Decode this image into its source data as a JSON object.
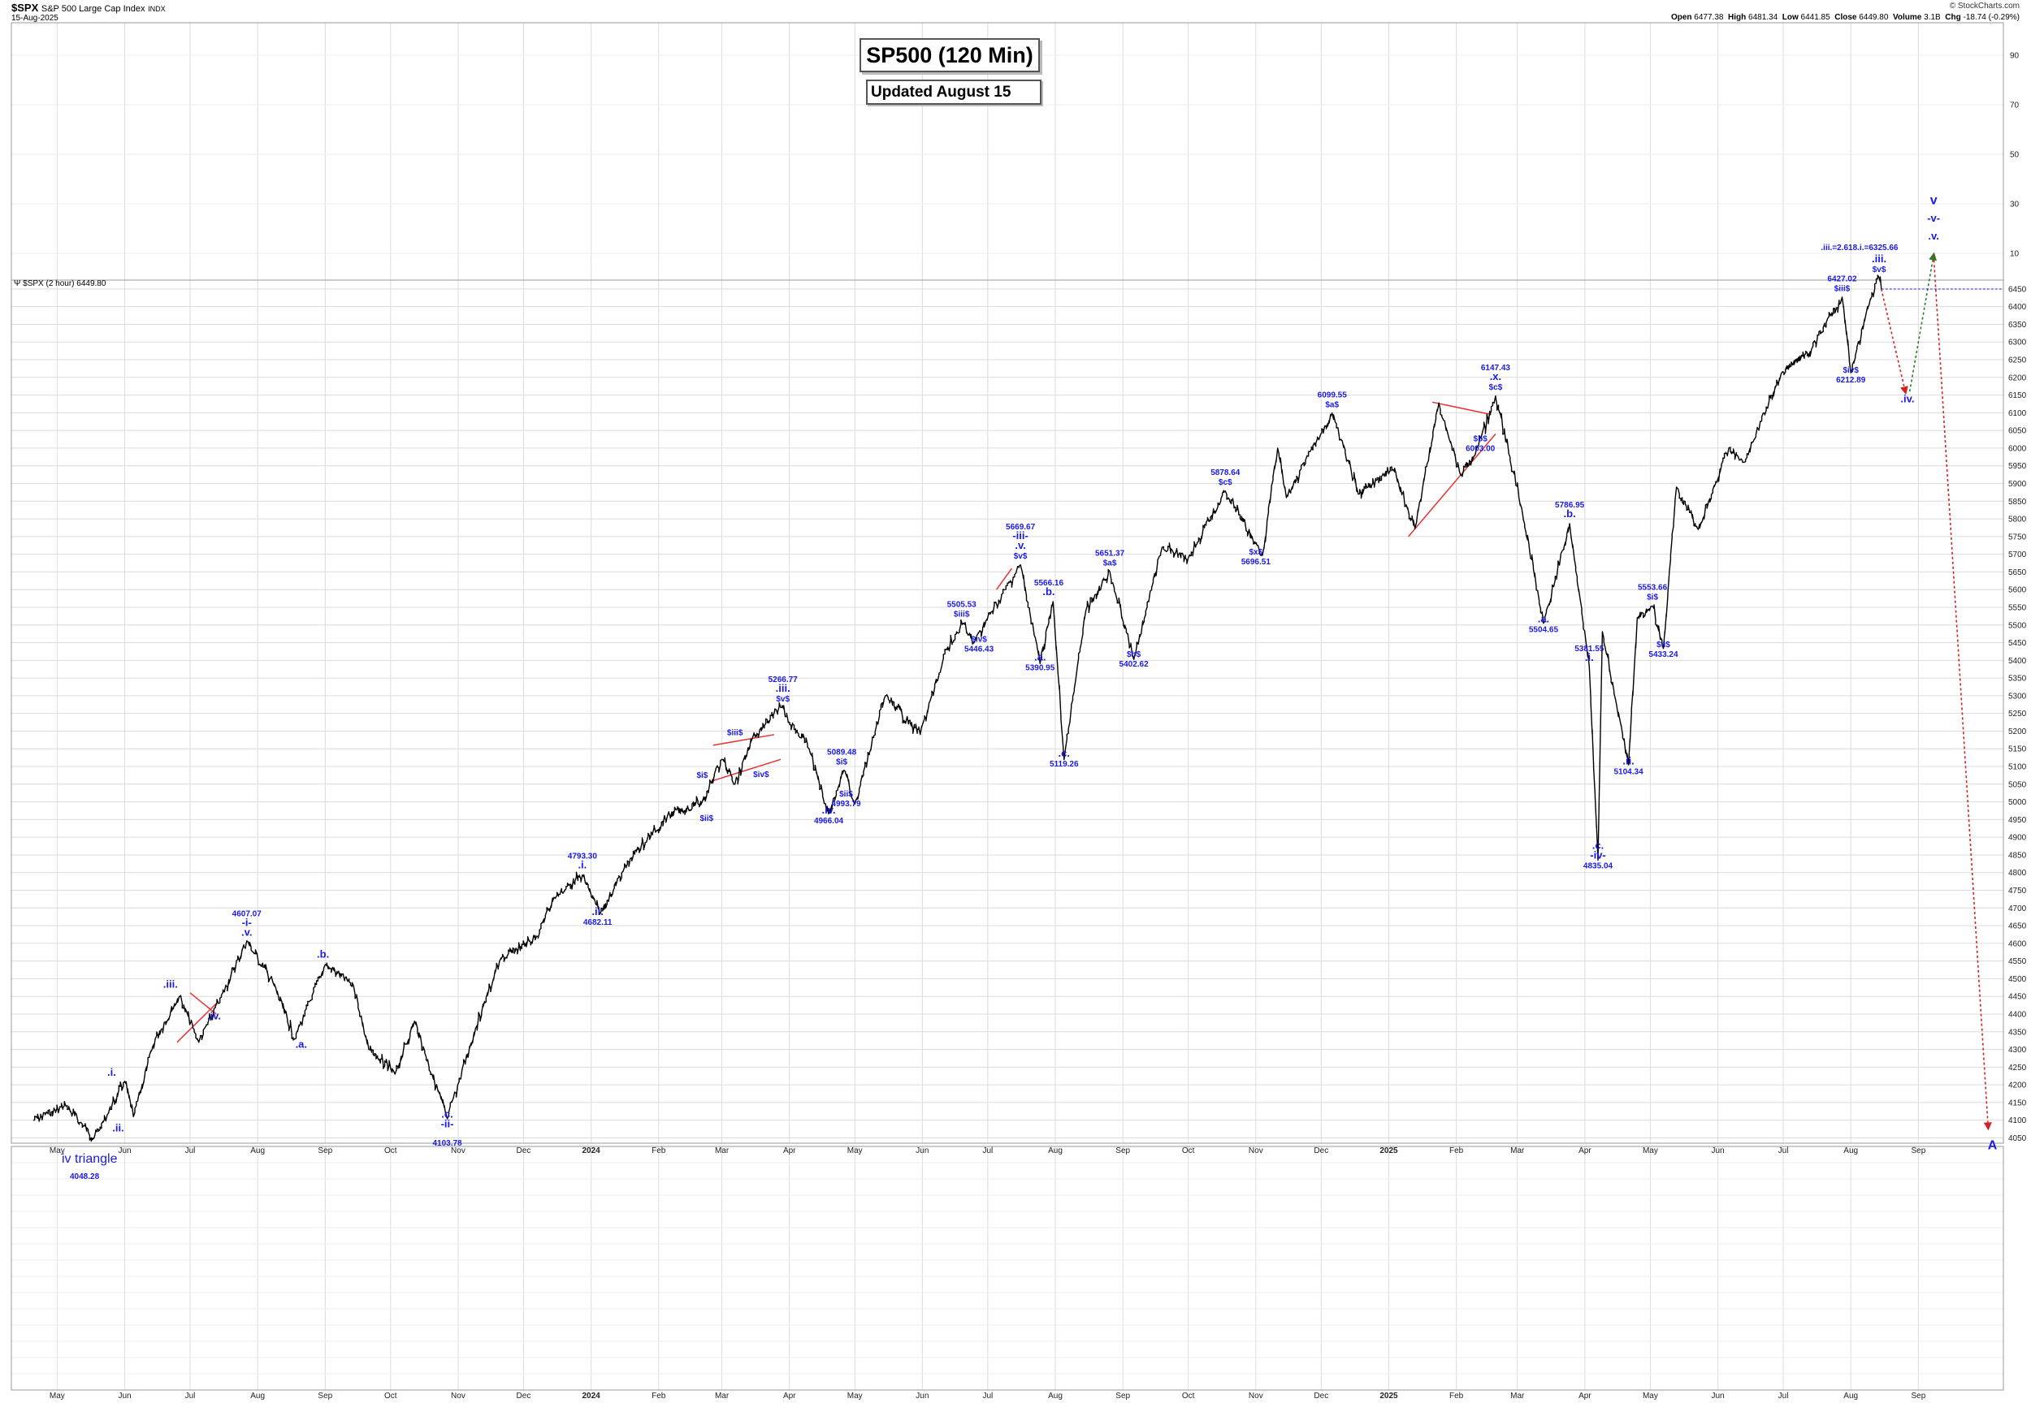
{
  "header": {
    "symbol": "$SPX",
    "name": "S&P 500 Large Cap Index",
    "exchange": "INDX",
    "date": "15-Aug-2025",
    "copyright": "© StockCharts.com",
    "open_label": "Open",
    "open": "6477.38",
    "high_label": "High",
    "high": "6481.34",
    "low_label": "Low",
    "low": "6441.85",
    "close_label": "Close",
    "close": "6449.80",
    "volume_label": "Volume",
    "volume": "3.1B",
    "chg_label": "Chg",
    "chg": "-18.74 (-0.29%)"
  },
  "title_box": "SP500 (120 Min)",
  "updated_box": "Updated August 15",
  "legend": "$SPX (2 hour) 6449.80",
  "colors": {
    "price": "#000000",
    "wave_label": "#1a1ae6",
    "trendline": "#e63333",
    "projection_down": "#d42020",
    "projection_up": "#2a7a2a",
    "grid": "#dcdcdc",
    "last_price_line": "#2a2ae6"
  },
  "chart_data": {
    "type": "line",
    "title": "SP500 (120 Min)",
    "series": [
      {
        "name": "$SPX (2 hour)",
        "points": [
          [
            "2023-04-20",
            4100
          ],
          [
            "2023-05-05",
            4140
          ],
          [
            "2023-05-18",
            4050
          ],
          [
            "2023-05-24",
            4115
          ],
          [
            "2023-06-01",
            4210
          ],
          [
            "2023-06-05",
            4110
          ],
          [
            "2023-06-15",
            4330
          ],
          [
            "2023-06-26",
            4450
          ],
          [
            "2023-07-05",
            4320
          ],
          [
            "2023-07-14",
            4430
          ],
          [
            "2023-07-27",
            4607.07
          ],
          [
            "2023-08-08",
            4490
          ],
          [
            "2023-08-18",
            4330
          ],
          [
            "2023-09-01",
            4540
          ],
          [
            "2023-09-14",
            4480
          ],
          [
            "2023-09-21",
            4300
          ],
          [
            "2023-10-03",
            4230
          ],
          [
            "2023-10-12",
            4380
          ],
          [
            "2023-10-20",
            4230
          ],
          [
            "2023-10-27",
            4103.78
          ],
          [
            "2023-11-09",
            4360
          ],
          [
            "2023-11-20",
            4550
          ],
          [
            "2023-12-07",
            4620
          ],
          [
            "2023-12-15",
            4730
          ],
          [
            "2023-12-28",
            4793.3
          ],
          [
            "2024-01-05",
            4682.11
          ],
          [
            "2024-01-19",
            4840
          ],
          [
            "2024-02-05",
            4960
          ],
          [
            "2024-02-21",
            5000
          ],
          [
            "2024-03-01",
            5120
          ],
          [
            "2024-03-07",
            5050
          ],
          [
            "2024-03-15",
            5180
          ],
          [
            "2024-03-28",
            5266.77
          ],
          [
            "2024-04-10",
            5150
          ],
          [
            "2024-04-19",
            4966.04
          ],
          [
            "2024-04-26",
            5089.48
          ],
          [
            "2024-05-01",
            4993.79
          ],
          [
            "2024-05-15",
            5300
          ],
          [
            "2024-05-31",
            5190
          ],
          [
            "2024-06-12",
            5430
          ],
          [
            "2024-06-20",
            5505.53
          ],
          [
            "2024-06-24",
            5446.43
          ],
          [
            "2024-07-16",
            5669.67
          ],
          [
            "2024-07-25",
            5390.95
          ],
          [
            "2024-07-31",
            5566.16
          ],
          [
            "2024-08-05",
            5119.26
          ],
          [
            "2024-08-15",
            5540
          ],
          [
            "2024-08-26",
            5651.37
          ],
          [
            "2024-09-06",
            5402.62
          ],
          [
            "2024-09-19",
            5720
          ],
          [
            "2024-10-01",
            5690
          ],
          [
            "2024-10-18",
            5878.64
          ],
          [
            "2024-11-04",
            5696.51
          ],
          [
            "2024-11-11",
            6000
          ],
          [
            "2024-11-15",
            5860
          ],
          [
            "2024-12-06",
            6099.55
          ],
          [
            "2024-12-18",
            5870
          ],
          [
            "2025-01-03",
            5940
          ],
          [
            "2025-01-13",
            5773
          ],
          [
            "2025-01-24",
            6128
          ],
          [
            "2025-02-03",
            5923
          ],
          [
            "2025-02-11",
            6003.0
          ],
          [
            "2025-02-19",
            6147.43
          ],
          [
            "2025-03-03",
            5830
          ],
          [
            "2025-03-13",
            5504.65
          ],
          [
            "2025-03-25",
            5786.95
          ],
          [
            "2025-04-03",
            5381.55
          ],
          [
            "2025-04-07",
            4835.04
          ],
          [
            "2025-04-09",
            5481
          ],
          [
            "2025-04-21",
            5104.34
          ],
          [
            "2025-04-25",
            5520
          ],
          [
            "2025-05-02",
            5553.66
          ],
          [
            "2025-05-07",
            5433.24
          ],
          [
            "2025-05-13",
            5890
          ],
          [
            "2025-05-23",
            5770
          ],
          [
            "2025-06-06",
            6000
          ],
          [
            "2025-06-13",
            5960
          ],
          [
            "2025-06-30",
            6210
          ],
          [
            "2025-07-14",
            6280
          ],
          [
            "2025-07-28",
            6427.02
          ],
          [
            "2025-08-01",
            6212.89
          ],
          [
            "2025-08-08",
            6380
          ],
          [
            "2025-08-14",
            6481.34
          ],
          [
            "2025-08-15",
            6449.8
          ]
        ]
      }
    ],
    "projections": [
      {
        "name": "down",
        "from": [
          "2025-08-15",
          6449.8
        ],
        "to": [
          "2025-08-26",
          6160
        ]
      },
      {
        "name": "up",
        "from": [
          "2025-08-28",
          6160
        ],
        "to": [
          "2025-09-08",
          6545
        ]
      },
      {
        "name": "down-long",
        "from": [
          "2025-09-08",
          6545
        ],
        "to": [
          "2025-10-03",
          4080
        ]
      }
    ],
    "trendlines": [
      {
        "from": [
          "2023-06-25",
          4320
        ],
        "to": [
          "2023-07-13",
          4430
        ]
      },
      {
        "from": [
          "2023-07-01",
          4460
        ],
        "to": [
          "2023-07-13",
          4400
        ]
      },
      {
        "from": [
          "2024-02-26",
          5060
        ],
        "to": [
          "2024-03-28",
          5120
        ]
      },
      {
        "from": [
          "2024-02-26",
          5160
        ],
        "to": [
          "2024-03-25",
          5190
        ]
      },
      {
        "from": [
          "2024-07-05",
          5600
        ],
        "to": [
          "2024-07-12",
          5660
        ]
      },
      {
        "from": [
          "2025-01-10",
          5750
        ],
        "to": [
          "2025-02-19",
          6040
        ]
      },
      {
        "from": [
          "2025-01-21",
          6130
        ],
        "to": [
          "2025-02-17",
          6095
        ]
      }
    ],
    "annotations": [
      {
        "lines": [
          ".i."
        ],
        "at": [
          "2023-05-26",
          4225
        ]
      },
      {
        "lines": [
          ".ii."
        ],
        "at": [
          "2023-05-29",
          4068
        ]
      },
      {
        "lines": [
          ".iii."
        ],
        "at": [
          "2023-06-22",
          4475
        ]
      },
      {
        "lines": [
          ".iv."
        ],
        "at": [
          "2023-07-12",
          4385
        ]
      },
      {
        "lines": [
          "4607.07",
          "-i-",
          ".v."
        ],
        "at": [
          "2023-07-27",
          4622
        ]
      },
      {
        "lines": [
          ".a."
        ],
        "at": [
          "2023-08-21",
          4305
        ]
      },
      {
        "lines": [
          ".b."
        ],
        "at": [
          "2023-08-31",
          4560
        ]
      },
      {
        "lines": [
          ".c.",
          "-ii-"
        ],
        "at": [
          "2023-10-27",
          4080
        ]
      },
      {
        "lines": [
          "4103.78"
        ],
        "at": [
          "2023-10-27",
          4028
        ]
      },
      {
        "lines": [
          "4793.30",
          ".i."
        ],
        "at": [
          "2023-12-28",
          4812
        ]
      },
      {
        "lines": [
          ".ii.",
          "4682.11"
        ],
        "at": [
          "2024-01-04",
          4652
        ]
      },
      {
        "lines": [
          "$i$"
        ],
        "at": [
          "2024-02-21",
          5068
        ]
      },
      {
        "lines": [
          "$ii$"
        ],
        "at": [
          "2024-02-23",
          4946
        ]
      },
      {
        "lines": [
          "$iii$"
        ],
        "at": [
          "2024-03-07",
          5188
        ]
      },
      {
        "lines": [
          "$iv$"
        ],
        "at": [
          "2024-03-19",
          5070
        ]
      },
      {
        "lines": [
          "5266.77",
          ".iii.",
          "$v$"
        ],
        "at": [
          "2024-03-29",
          5284
        ]
      },
      {
        "lines": [
          "5089.48",
          "$i$"
        ],
        "at": [
          "2024-04-25",
          5106
        ]
      },
      {
        "lines": [
          "$ii$",
          "4993.79"
        ],
        "at": [
          "2024-04-27",
          4988
        ]
      },
      {
        "lines": [
          ".iv.",
          "4966.04"
        ],
        "at": [
          "2024-04-19",
          4939
        ]
      },
      {
        "lines": [
          "5505.53",
          "$iii$"
        ],
        "at": [
          "2024-06-19",
          5524
        ]
      },
      {
        "lines": [
          "$iv$",
          "5446.43"
        ],
        "at": [
          "2024-06-27",
          5425
        ]
      },
      {
        "lines": [
          "5669.67",
          "-iii-",
          ".v.",
          "$v$"
        ],
        "at": [
          "2024-07-16",
          5688
        ]
      },
      {
        "lines": [
          "5566.16",
          ".b."
        ],
        "at": [
          "2024-07-29",
          5584
        ]
      },
      {
        "lines": [
          ".a.",
          "5390.95"
        ],
        "at": [
          "2024-07-25",
          5372
        ]
      },
      {
        "lines": [
          ".c.",
          "5119.26"
        ],
        "at": [
          "2024-08-05",
          5100
        ]
      },
      {
        "lines": [
          "5651.37",
          "$a$"
        ],
        "at": [
          "2024-08-26",
          5668
        ]
      },
      {
        "lines": [
          "$b$",
          "5402.62"
        ],
        "at": [
          "2024-09-06",
          5382
        ]
      },
      {
        "lines": [
          "5878.64",
          "$c$"
        ],
        "at": [
          "2024-10-18",
          5896
        ]
      },
      {
        "lines": [
          "$x$",
          "5696.51"
        ],
        "at": [
          "2024-11-01",
          5672
        ]
      },
      {
        "lines": [
          "6099.55",
          "$a$"
        ],
        "at": [
          "2024-12-06",
          6116
        ]
      },
      {
        "lines": [
          "6147.43",
          ".x.",
          "$c$"
        ],
        "at": [
          "2025-02-19",
          6165
        ]
      },
      {
        "lines": [
          "$b$",
          "6003.00"
        ],
        "at": [
          "2025-02-12",
          5992
        ]
      },
      {
        "lines": [
          "5786.95",
          ".b."
        ],
        "at": [
          "2025-03-25",
          5805
        ]
      },
      {
        "lines": [
          ".a.",
          "5504.65"
        ],
        "at": [
          "2025-03-13",
          5480
        ]
      },
      {
        "lines": [
          "5381.55",
          ".i."
        ],
        "at": [
          "2025-04-03",
          5398
        ]
      },
      {
        "lines": [
          ".c.",
          "-iv-",
          "4835.04"
        ],
        "at": [
          "2025-04-07",
          4812
        ]
      },
      {
        "lines": [
          ".ii.",
          "5104.34"
        ],
        "at": [
          "2025-04-21",
          5078
        ]
      },
      {
        "lines": [
          "5553.66",
          "$i$"
        ],
        "at": [
          "2025-05-02",
          5572
        ]
      },
      {
        "lines": [
          "$ii$",
          "5433.24"
        ],
        "at": [
          "2025-05-07",
          5410
        ]
      },
      {
        "lines": [
          "6427.02",
          "$iii$"
        ],
        "at": [
          "2025-07-28",
          6444
        ]
      },
      {
        "lines": [
          "$iv$",
          "6212.89"
        ],
        "at": [
          "2025-08-01",
          6186
        ]
      },
      {
        "lines": [
          ".iii.",
          "$v$"
        ],
        "at": [
          "2025-08-14",
          6498
        ]
      },
      {
        "lines": [
          ".iv."
        ],
        "at": [
          "2025-08-27",
          6130
        ]
      }
    ],
    "projection_labels": [
      {
        "text": ".iii.=2.618.i.=6325.66",
        "at": [
          "2025-08-05",
          6560
        ]
      },
      {
        "text": "v",
        "at": [
          "2025-09-08",
          6690
        ]
      },
      {
        "text": "-v-",
        "at": [
          "2025-09-08",
          6640
        ]
      },
      {
        "text": ".v.",
        "at": [
          "2025-09-08",
          6590
        ]
      },
      {
        "text": "A",
        "at": [
          "2025-10-05",
          4018
        ]
      }
    ],
    "x_ticks": [
      {
        "label": "May",
        "date": "2023-05-01"
      },
      {
        "label": "Jun",
        "date": "2023-06-01"
      },
      {
        "label": "Jul",
        "date": "2023-07-01"
      },
      {
        "label": "Aug",
        "date": "2023-08-01"
      },
      {
        "label": "Sep",
        "date": "2023-09-01"
      },
      {
        "label": "Oct",
        "date": "2023-10-01"
      },
      {
        "label": "Nov",
        "date": "2023-11-01"
      },
      {
        "label": "Dec",
        "date": "2023-12-01"
      },
      {
        "label": "2024",
        "date": "2024-01-01"
      },
      {
        "label": "Feb",
        "date": "2024-02-01"
      },
      {
        "label": "Mar",
        "date": "2024-03-01"
      },
      {
        "label": "Apr",
        "date": "2024-04-01"
      },
      {
        "label": "May",
        "date": "2024-05-01"
      },
      {
        "label": "Jun",
        "date": "2024-06-01"
      },
      {
        "label": "Jul",
        "date": "2024-07-01"
      },
      {
        "label": "Aug",
        "date": "2024-08-01"
      },
      {
        "label": "Sep",
        "date": "2024-09-01"
      },
      {
        "label": "Oct",
        "date": "2024-10-01"
      },
      {
        "label": "Nov",
        "date": "2024-11-01"
      },
      {
        "label": "Dec",
        "date": "2024-12-01"
      },
      {
        "label": "2025",
        "date": "2025-01-01"
      },
      {
        "label": "Feb",
        "date": "2025-02-01"
      },
      {
        "label": "Mar",
        "date": "2025-03-01"
      },
      {
        "label": "Apr",
        "date": "2025-04-01"
      },
      {
        "label": "May",
        "date": "2025-05-01"
      },
      {
        "label": "Jun",
        "date": "2025-06-01"
      },
      {
        "label": "Jul",
        "date": "2025-07-01"
      },
      {
        "label": "Aug",
        "date": "2025-08-01"
      },
      {
        "label": "Sep",
        "date": "2025-09-01"
      }
    ],
    "y_range": [
      4035,
      6475
    ],
    "y_ticks": [
      4050,
      4100,
      4150,
      4200,
      4250,
      4300,
      4350,
      4400,
      4450,
      4500,
      4550,
      4600,
      4650,
      4700,
      4750,
      4800,
      4850,
      4900,
      4950,
      5000,
      5050,
      5100,
      5150,
      5200,
      5250,
      5300,
      5350,
      5400,
      5450,
      5500,
      5550,
      5600,
      5650,
      5700,
      5750,
      5800,
      5850,
      5900,
      5950,
      6000,
      6050,
      6100,
      6150,
      6200,
      6250,
      6300,
      6350,
      6400,
      6450
    ],
    "upper_pane_ticks": [
      "90",
      "70",
      "50",
      "30",
      "10"
    ],
    "last_price": 6449.8,
    "lower_pane": {
      "label": "iv triangle",
      "value": "4048.28"
    },
    "grid": true
  }
}
